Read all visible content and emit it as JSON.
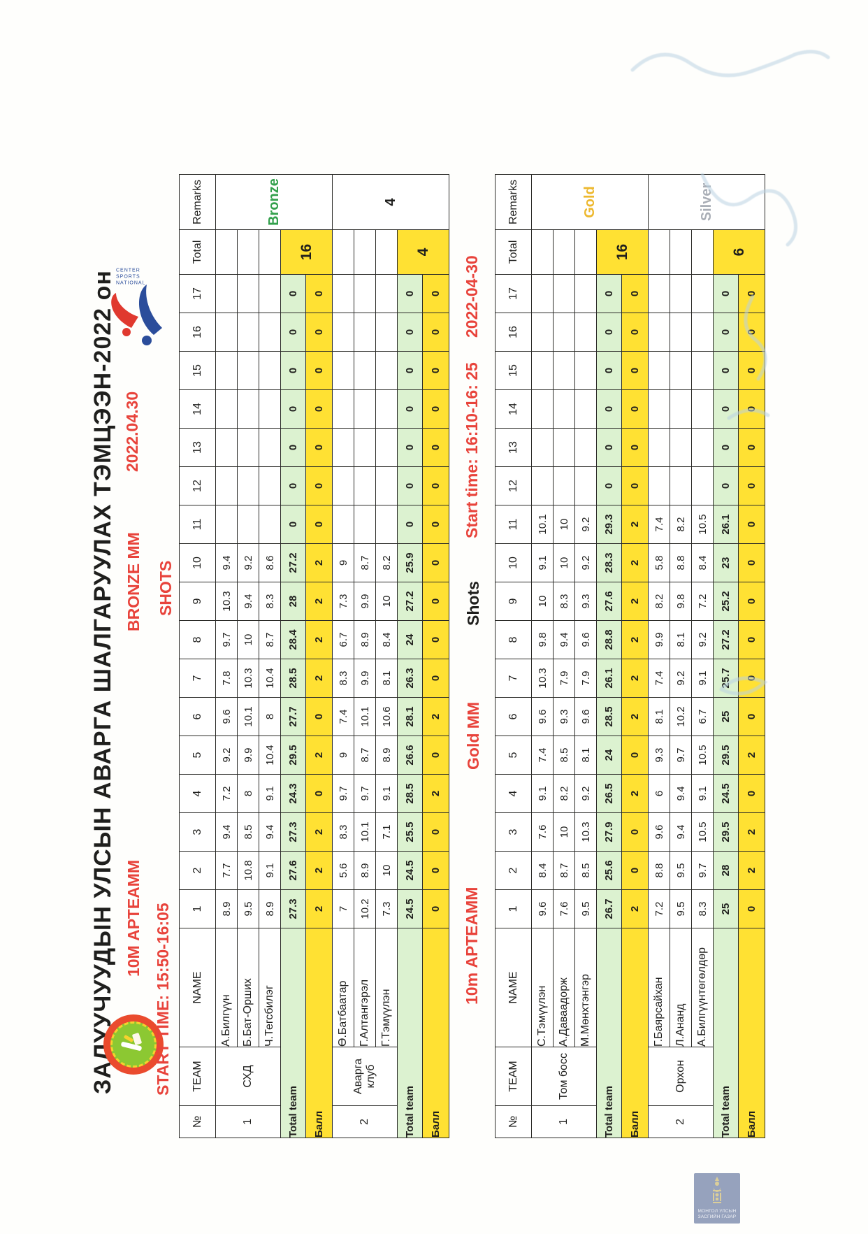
{
  "page": {
    "title": "ЗАЛУУЧУУДЫН УЛСЫН АВАРГА ШАЛГАРУУЛАХ ТЭМЦЭЭН-2022 он",
    "stamp": {
      "line1": "МОНГОЛ УЛСЫН",
      "line2": "ЗАСГИЙН ГАЗАР"
    },
    "nsc_logo_text": {
      "line1": "NATIONAL",
      "line2": "SPORTS",
      "line3": "CENTER"
    }
  },
  "colors": {
    "ink": "#1f1f1d",
    "grid": "#2b2b28",
    "red": "#e8433b",
    "yellow": "#ffe133",
    "green_row": "#dcf2d0",
    "bronze": "#33a04c",
    "gold": "#edb82e",
    "silver": "#a9aeb6",
    "stamp_bg": "#8e9bb8",
    "scribble": "#b9d2e2",
    "club_ring": "#ea4b2e",
    "club_center": "#8cc832",
    "nsc_red": "#e0392f",
    "nsc_blue": "#2b4d9b"
  },
  "tables": [
    {
      "start_label": "START TIME: 15:50-16:05",
      "event_label": "10M АРТЕАММ",
      "medal_label": "BRONZE MM",
      "shots_label": "SHOTS",
      "date_label": "2022.04.30",
      "headers": {
        "no": "№",
        "team": "TEAM",
        "name": "NAME",
        "total": "Total",
        "remarks": "Remarks"
      },
      "shot_numbers": [
        "1",
        "2",
        "3",
        "4",
        "5",
        "6",
        "7",
        "8",
        "9",
        "10",
        "11",
        "12",
        "13",
        "14",
        "15",
        "16",
        "17"
      ],
      "total_team_label": "Total team",
      "ball_label": "Балл",
      "teams": [
        {
          "no": "1",
          "team": "СХД",
          "remark": "Bronze",
          "remark_color": "#33a04c",
          "total": "16",
          "athletes": [
            {
              "name": "А.Билгүүн",
              "shots": [
                "8.9",
                "7.7",
                "9.4",
                "7.2",
                "9.2",
                "9.6",
                "7.8",
                "9.7",
                "10.3",
                "9.4",
                "",
                "",
                "",
                "",
                "",
                "",
                ""
              ]
            },
            {
              "name": "Б.Бат-Орших",
              "shots": [
                "9.5",
                "10.8",
                "8.5",
                "8",
                "9.9",
                "10.1",
                "10.3",
                "10",
                "9.4",
                "9.2",
                "",
                "",
                "",
                "",
                "",
                "",
                ""
              ]
            },
            {
              "name": "Ч.Тегсбилэг",
              "shots": [
                "8.9",
                "9.1",
                "9.4",
                "9.1",
                "10.4",
                "8",
                "10.4",
                "8.7",
                "8.3",
                "8.6",
                "",
                "",
                "",
                "",
                "",
                "",
                ""
              ]
            }
          ],
          "team_totals": [
            "27.3",
            "27.6",
            "27.3",
            "24.3",
            "29.5",
            "27.7",
            "28.5",
            "28.4",
            "28",
            "27.2",
            "0",
            "0",
            "0",
            "0",
            "0",
            "0",
            "0"
          ],
          "ball": [
            "2",
            "2",
            "2",
            "0",
            "2",
            "0",
            "2",
            "2",
            "2",
            "2",
            "0",
            "0",
            "0",
            "0",
            "0",
            "0",
            "0"
          ]
        },
        {
          "no": "2",
          "team": "Аварга клуб",
          "remark": "4",
          "remark_color": "#1f1f1d",
          "total": "4",
          "athletes": [
            {
              "name": "Ө.Батбаатар",
              "shots": [
                "7",
                "5.6",
                "8.3",
                "9.7",
                "9",
                "7.4",
                "8.3",
                "6.7",
                "7.3",
                "9",
                "",
                "",
                "",
                "",
                "",
                "",
                ""
              ]
            },
            {
              "name": "Г.Алтангэрэл",
              "shots": [
                "10.2",
                "8.9",
                "10.1",
                "9.7",
                "8.7",
                "10.1",
                "9.9",
                "8.9",
                "9.9",
                "8.7",
                "",
                "",
                "",
                "",
                "",
                "",
                ""
              ]
            },
            {
              "name": "Г.Тэмүүлэн",
              "shots": [
                "7.3",
                "10",
                "7.1",
                "9.1",
                "8.9",
                "10.6",
                "8.1",
                "8.4",
                "10",
                "8.2",
                "",
                "",
                "",
                "",
                "",
                "",
                ""
              ]
            }
          ],
          "team_totals": [
            "24.5",
            "24.5",
            "25.5",
            "28.5",
            "26.6",
            "28.1",
            "26.3",
            "24",
            "27.2",
            "25.9",
            "0",
            "0",
            "0",
            "0",
            "0",
            "0",
            "0"
          ],
          "ball": [
            "0",
            "0",
            "0",
            "2",
            "0",
            "2",
            "0",
            "0",
            "0",
            "0",
            "0",
            "0",
            "0",
            "0",
            "0",
            "0",
            "0"
          ]
        }
      ]
    },
    {
      "start_label": "Start time: 16:10-16: 25",
      "event_label": "10m АРТЕАММ",
      "medal_label": "Gold MM",
      "shots_label": "Shots",
      "date_label": "2022-04-30",
      "headers": {
        "no": "№",
        "team": "TEAM",
        "name": "NAME",
        "total": "Total",
        "remarks": "Remarks"
      },
      "shot_numbers": [
        "1",
        "2",
        "3",
        "4",
        "5",
        "6",
        "7",
        "8",
        "9",
        "10",
        "11",
        "12",
        "13",
        "14",
        "15",
        "16",
        "17"
      ],
      "total_team_label": "Total team",
      "ball_label": "Балл",
      "teams": [
        {
          "no": "1",
          "team": "Том босс",
          "remark": "Gold",
          "remark_color": "#edb82e",
          "total": "16",
          "athletes": [
            {
              "name": "С.Тэмүүлэн",
              "shots": [
                "9.6",
                "8.4",
                "7.6",
                "9.1",
                "7.4",
                "9.6",
                "10.3",
                "9.8",
                "10",
                "9.1",
                "10.1",
                "",
                "",
                "",
                "",
                "",
                ""
              ]
            },
            {
              "name": "А.Даваадорж",
              "shots": [
                "7.6",
                "8.7",
                "10",
                "8.2",
                "8.5",
                "9.3",
                "7.9",
                "9.4",
                "8.3",
                "10",
                "10",
                "",
                "",
                "",
                "",
                "",
                ""
              ]
            },
            {
              "name": "М.Мөнхтэнгэр",
              "shots": [
                "9.5",
                "8.5",
                "10.3",
                "9.2",
                "8.1",
                "9.6",
                "7.9",
                "9.6",
                "9.3",
                "9.2",
                "9.2",
                "",
                "",
                "",
                "",
                "",
                ""
              ]
            }
          ],
          "team_totals": [
            "26.7",
            "25.6",
            "27.9",
            "26.5",
            "24",
            "28.5",
            "26.1",
            "28.8",
            "27.6",
            "28.3",
            "29.3",
            "0",
            "0",
            "0",
            "0",
            "0",
            "0"
          ],
          "ball": [
            "2",
            "0",
            "0",
            "2",
            "0",
            "2",
            "2",
            "2",
            "2",
            "2",
            "2",
            "0",
            "0",
            "0",
            "0",
            "0",
            "0"
          ]
        },
        {
          "no": "2",
          "team": "Орхон",
          "remark": "Silver",
          "remark_color": "#a9aeb6",
          "total": "6",
          "athletes": [
            {
              "name": "Г.Баярсайхан",
              "shots": [
                "7.2",
                "8.8",
                "9.6",
                "6",
                "9.3",
                "8.1",
                "7.4",
                "9.9",
                "8.2",
                "5.8",
                "7.4",
                "",
                "",
                "",
                "",
                "",
                ""
              ]
            },
            {
              "name": "Л.Ананд",
              "shots": [
                "9.5",
                "9.5",
                "9.4",
                "9.4",
                "9.7",
                "10.2",
                "9.2",
                "8.1",
                "9.8",
                "8.8",
                "8.2",
                "",
                "",
                "",
                "",
                "",
                ""
              ]
            },
            {
              "name": "А.Билгүүнтөгөлдөр",
              "shots": [
                "8.3",
                "9.7",
                "10.5",
                "9.1",
                "10.5",
                "6.7",
                "9.1",
                "9.2",
                "7.2",
                "8.4",
                "10.5",
                "",
                "",
                "",
                "",
                "",
                ""
              ]
            }
          ],
          "team_totals": [
            "25",
            "28",
            "29.5",
            "24.5",
            "29.5",
            "25",
            "25.7",
            "27.2",
            "25.2",
            "23",
            "26.1",
            "0",
            "0",
            "0",
            "0",
            "0",
            "0"
          ],
          "ball": [
            "0",
            "2",
            "2",
            "0",
            "2",
            "0",
            "0",
            "0",
            "0",
            "0",
            "0",
            "0",
            "0",
            "0",
            "0",
            "0",
            "0"
          ]
        }
      ]
    }
  ]
}
